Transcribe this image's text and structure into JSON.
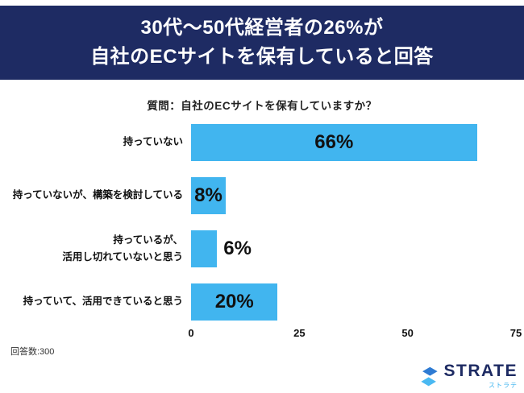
{
  "header": {
    "title_line1": "30代〜50代経営者の26%が",
    "title_line2": "自社のECサイトを保有していると回答",
    "bg_color": "#1e2b63",
    "text_color": "#ffffff"
  },
  "chart_data": {
    "type": "bar",
    "orientation": "horizontal",
    "title": "質問：自社のECサイトを保有していますか？",
    "categories": [
      "持っていない",
      "持っていないが、構築を検討している",
      "持っているが、\n活用し切れていないと思う",
      "持っていて、活用できていると思う"
    ],
    "values": [
      66,
      8,
      6,
      20
    ],
    "value_labels": [
      "66%",
      "8%",
      "6%",
      "20%"
    ],
    "xlim": [
      0,
      75
    ],
    "x_ticks": [
      0,
      25,
      50,
      75
    ],
    "bar_color": "#41b5ef",
    "grid": false,
    "legend": false
  },
  "footer": {
    "respondents": "回答数:300"
  },
  "logo": {
    "text": "STRATE",
    "subtext": "ストラテ",
    "color": "#1e2b63",
    "subtext_color": "#41b5ef",
    "icon": "strate-cube-icon",
    "icon_colors": [
      "#2e7bd3",
      "#4ab9f2"
    ]
  }
}
